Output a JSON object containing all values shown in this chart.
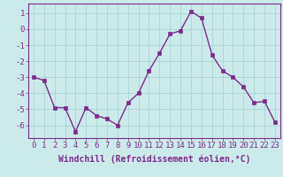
{
  "x": [
    0,
    1,
    2,
    3,
    4,
    5,
    6,
    7,
    8,
    9,
    10,
    11,
    12,
    13,
    14,
    15,
    16,
    17,
    18,
    19,
    20,
    21,
    22,
    23
  ],
  "y": [
    -3.0,
    -3.2,
    -4.9,
    -4.9,
    -6.4,
    -4.9,
    -5.4,
    -5.6,
    -6.0,
    -4.6,
    -4.0,
    -2.6,
    -1.5,
    -0.3,
    -0.1,
    1.1,
    0.7,
    -1.6,
    -2.6,
    -3.0,
    -3.6,
    -4.6,
    -4.5,
    -5.8
  ],
  "line_color": "#7b2d8b",
  "marker": "s",
  "marker_size": 2.5,
  "bg_color": "#cdeaea",
  "grid_color": "#a8d4d4",
  "xlabel": "Windchill (Refroidissement éolien,°C)",
  "xlim": [
    -0.5,
    23.5
  ],
  "ylim": [
    -6.8,
    1.6
  ],
  "yticks": [
    1,
    0,
    -1,
    -2,
    -3,
    -4,
    -5,
    -6
  ],
  "xtick_labels": [
    "0",
    "1",
    "2",
    "3",
    "4",
    "5",
    "6",
    "7",
    "8",
    "9",
    "10",
    "11",
    "12",
    "13",
    "14",
    "15",
    "16",
    "17",
    "18",
    "19",
    "20",
    "21",
    "22",
    "23"
  ],
  "xlabel_fontsize": 7.0,
  "tick_fontsize": 6.5,
  "line_width": 1.0,
  "spine_color": "#7b2d8b"
}
